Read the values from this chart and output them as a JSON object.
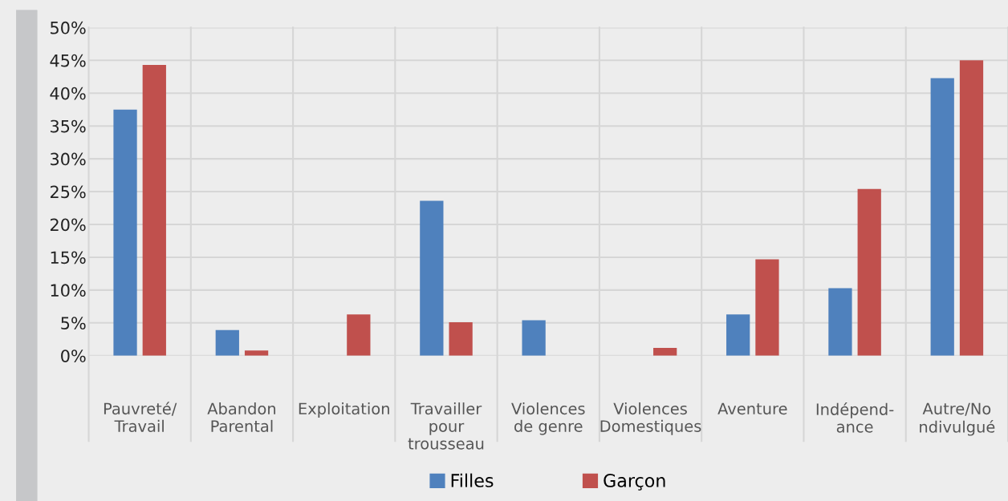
{
  "chart_data": {
    "type": "bar",
    "categories": [
      "Pauvreté/\nTravail",
      "Abandon\nParental",
      "Exploitation",
      "Travailler\npour\ntrousseau",
      "Violences\nde genre",
      "Violences\nDomestiques",
      "Aventure",
      "Indépend-\nance",
      "Autre/No\nndivulgué"
    ],
    "series": [
      {
        "name": "Filles",
        "color": "#4f81bd",
        "values": [
          37.5,
          3.9,
          0,
          23.6,
          5.4,
          0,
          6.3,
          10.3,
          42.3
        ]
      },
      {
        "name": "Garçon",
        "color": "#c0504d",
        "values": [
          44.3,
          0.8,
          6.3,
          5.1,
          0,
          1.2,
          14.7,
          25.4,
          45.0
        ]
      }
    ],
    "ylim": [
      0,
      50
    ],
    "yticks": [
      {
        "value": 0,
        "label": "0%"
      },
      {
        "value": 5,
        "label": "5%"
      },
      {
        "value": 10,
        "label": "10%"
      },
      {
        "value": 15,
        "label": "15%"
      },
      {
        "value": 20,
        "label": "20%"
      },
      {
        "value": 25,
        "label": "25%"
      },
      {
        "value": 30,
        "label": "30%"
      },
      {
        "value": 35,
        "label": "35%"
      },
      {
        "value": 40,
        "label": "40%"
      },
      {
        "value": 45,
        "label": "45%"
      },
      {
        "value": 50,
        "label": "50%"
      }
    ],
    "grid": true,
    "legend": "bottom"
  }
}
